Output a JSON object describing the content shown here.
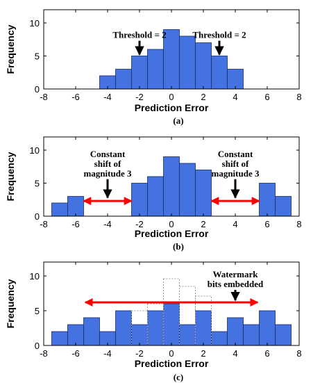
{
  "chart_data": [
    {
      "type": "bar",
      "caption": "(a)",
      "xlabel": "Prediction Error",
      "ylabel": "Frequency",
      "xlim": [
        -8,
        8
      ],
      "ylim": [
        0,
        12
      ],
      "xticks": [
        -8,
        -6,
        -4,
        -2,
        0,
        2,
        4,
        6,
        8
      ],
      "yticks": [
        0,
        5,
        10
      ],
      "bar_color": "#4472e0",
      "x": [
        -4,
        -3,
        -2,
        -1,
        0,
        1,
        2,
        3,
        4
      ],
      "values": [
        2,
        3,
        5,
        6,
        9,
        8,
        7,
        5,
        3
      ],
      "annotations": [
        {
          "text": "Threshold = 2",
          "x": -2,
          "arrow_from": 7.3,
          "arrow_to": 5.2
        },
        {
          "text": "Threshold = 2",
          "x": 3,
          "arrow_from": 7.3,
          "arrow_to": 5.2
        }
      ]
    },
    {
      "type": "bar",
      "caption": "(b)",
      "xlabel": "Prediction Error",
      "ylabel": "Frequency",
      "xlim": [
        -8,
        8
      ],
      "ylim": [
        0,
        12
      ],
      "xticks": [
        -8,
        -6,
        -4,
        -2,
        0,
        2,
        4,
        6,
        8
      ],
      "yticks": [
        0,
        5,
        10
      ],
      "bar_color": "#4472e0",
      "x": [
        -7,
        -6,
        -2,
        -1,
        0,
        1,
        2,
        6,
        7
      ],
      "values": [
        2,
        3,
        5,
        6,
        9,
        8,
        7,
        5,
        3
      ],
      "shift_arrows": [
        {
          "from": -5.5,
          "to": -2.5,
          "y": 2.3,
          "color": "#ff0000"
        },
        {
          "from": 2.5,
          "to": 5.5,
          "y": 2.3,
          "color": "#ff0000"
        }
      ],
      "annotations": [
        {
          "lines": [
            "Constant",
            "shift of",
            "magnitude 3"
          ],
          "x": -4,
          "arrow_from": 5.6,
          "arrow_to": 2.8
        },
        {
          "lines": [
            "Constant",
            "shift of",
            "magnitude 3"
          ],
          "x": 4,
          "arrow_from": 5.6,
          "arrow_to": 2.8
        }
      ]
    },
    {
      "type": "bar",
      "caption": "(c)",
      "xlabel": "Prediction Error",
      "ylabel": "Frequency",
      "xlim": [
        -8,
        8
      ],
      "ylim": [
        0,
        12
      ],
      "xticks": [
        -8,
        -6,
        -4,
        -2,
        0,
        2,
        4,
        6,
        8
      ],
      "yticks": [
        0,
        5,
        10
      ],
      "bar_color": "#4472e0",
      "x": [
        -7,
        -6,
        -5,
        -4,
        -3,
        -2,
        -1,
        0,
        1,
        2,
        3,
        4,
        5,
        6,
        7
      ],
      "values": [
        2,
        3,
        4,
        2,
        5,
        3,
        5,
        6,
        3,
        5,
        2,
        4,
        3,
        5,
        3
      ],
      "original_outline": {
        "x": [
          -2,
          -1,
          0,
          1,
          2
        ],
        "values": [
          5,
          6,
          9.6,
          8.5,
          7.1
        ],
        "color": "#9a9a9a"
      },
      "embed_arrow": {
        "from": -5.4,
        "to": 5.4,
        "y": 6.2,
        "color": "#ff0000"
      },
      "annotations": [
        {
          "lines": [
            "Watermark",
            "bits embedded"
          ],
          "x": 4,
          "arrow_from": 8.0,
          "arrow_to": 6.5
        }
      ]
    }
  ]
}
